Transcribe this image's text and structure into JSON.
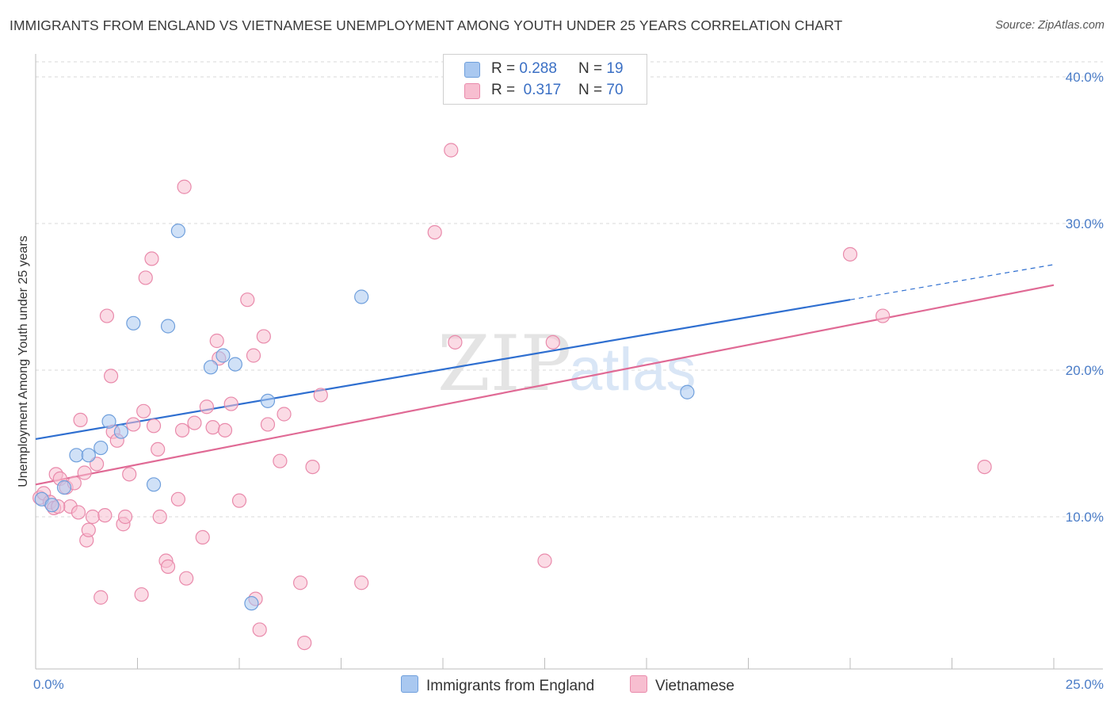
{
  "title": "IMMIGRANTS FROM ENGLAND VS VIETNAMESE UNEMPLOYMENT AMONG YOUTH UNDER 25 YEARS CORRELATION CHART",
  "source": "Source: ZipAtlas.com",
  "watermark": {
    "zip": "ZIP",
    "atlas": "atlas"
  },
  "legend": {
    "england": {
      "r_label": "R =",
      "r_value": "0.288",
      "n_label": "N =",
      "n_value": "19"
    },
    "vietnamese": {
      "r_label": "R =",
      "r_value": "0.317",
      "n_label": "N =",
      "n_value": "70"
    }
  },
  "colors": {
    "england_fill": "#a9c8f0",
    "england_stroke": "#6f9fdc",
    "england_line": "#2f6fd0",
    "vietnamese_fill": "#f7bed0",
    "vietnamese_stroke": "#e98aab",
    "vietnamese_line": "#e06a95",
    "tick": "#4a7cc7",
    "grid": "#d9d9d9"
  },
  "chart_data": {
    "type": "scatter",
    "title": "IMMIGRANTS FROM ENGLAND VS VIETNAMESE UNEMPLOYMENT AMONG YOUTH UNDER 25 YEARS CORRELATION CHART",
    "xlabel": "",
    "ylabel": "Unemployment Among Youth under 25 years",
    "xlim": [
      0,
      25
    ],
    "ylim": [
      0,
      42
    ],
    "x_tick_labels": [
      "0.0%",
      "25.0%"
    ],
    "y_ticks": [
      10,
      20,
      30,
      40
    ],
    "y_tick_labels": [
      "10.0%",
      "20.0%",
      "30.0%",
      "40.0%"
    ],
    "grid": true,
    "legend_position": "top-center",
    "series": [
      {
        "name": "Immigrants from England",
        "points": [
          [
            0.15,
            11.2
          ],
          [
            0.4,
            10.8
          ],
          [
            0.7,
            12.0
          ],
          [
            1.0,
            14.2
          ],
          [
            1.3,
            14.2
          ],
          [
            1.6,
            14.7
          ],
          [
            1.8,
            16.5
          ],
          [
            2.1,
            15.8
          ],
          [
            2.4,
            23.2
          ],
          [
            2.9,
            12.2
          ],
          [
            3.25,
            23.0
          ],
          [
            3.5,
            29.5
          ],
          [
            4.3,
            20.2
          ],
          [
            4.6,
            21.0
          ],
          [
            4.9,
            20.4
          ],
          [
            5.3,
            4.1
          ],
          [
            5.7,
            17.9
          ],
          [
            8.0,
            25.0
          ],
          [
            16.0,
            18.5
          ]
        ],
        "trend": {
          "x": [
            0,
            20,
            25
          ],
          "y": [
            15.3,
            24.8,
            27.2
          ],
          "dashed_from_x": 20
        }
      },
      {
        "name": "Vietnamese",
        "points": [
          [
            0.1,
            11.3
          ],
          [
            0.2,
            11.6
          ],
          [
            0.35,
            11.0
          ],
          [
            0.45,
            10.6
          ],
          [
            0.5,
            12.9
          ],
          [
            0.6,
            12.6
          ],
          [
            0.75,
            12.0
          ],
          [
            0.85,
            10.7
          ],
          [
            0.95,
            12.3
          ],
          [
            1.05,
            10.3
          ],
          [
            1.1,
            16.6
          ],
          [
            1.2,
            13.0
          ],
          [
            1.25,
            8.4
          ],
          [
            1.3,
            9.1
          ],
          [
            1.4,
            10.0
          ],
          [
            1.5,
            13.6
          ],
          [
            1.6,
            4.5
          ],
          [
            1.7,
            10.1
          ],
          [
            1.75,
            23.7
          ],
          [
            1.85,
            19.6
          ],
          [
            1.9,
            15.8
          ],
          [
            2.0,
            15.2
          ],
          [
            2.15,
            9.5
          ],
          [
            2.2,
            10.0
          ],
          [
            2.3,
            12.9
          ],
          [
            2.4,
            16.3
          ],
          [
            2.6,
            4.7
          ],
          [
            2.65,
            17.2
          ],
          [
            2.7,
            26.3
          ],
          [
            2.85,
            27.6
          ],
          [
            2.9,
            16.2
          ],
          [
            3.0,
            14.6
          ],
          [
            3.05,
            10.0
          ],
          [
            3.2,
            7.0
          ],
          [
            3.25,
            6.6
          ],
          [
            3.5,
            11.2
          ],
          [
            3.6,
            15.9
          ],
          [
            3.65,
            32.5
          ],
          [
            3.7,
            5.8
          ],
          [
            3.9,
            16.4
          ],
          [
            4.1,
            8.6
          ],
          [
            4.2,
            17.5
          ],
          [
            4.35,
            16.1
          ],
          [
            4.45,
            22.0
          ],
          [
            4.5,
            20.8
          ],
          [
            4.65,
            15.9
          ],
          [
            4.8,
            17.7
          ],
          [
            5.0,
            11.1
          ],
          [
            5.2,
            24.8
          ],
          [
            5.35,
            21.0
          ],
          [
            5.4,
            4.4
          ],
          [
            5.5,
            2.3
          ],
          [
            5.6,
            22.3
          ],
          [
            5.7,
            16.3
          ],
          [
            6.0,
            13.8
          ],
          [
            6.1,
            17.0
          ],
          [
            6.5,
            5.5
          ],
          [
            6.6,
            1.4
          ],
          [
            6.8,
            13.4
          ],
          [
            7.0,
            18.3
          ],
          [
            8.0,
            5.5
          ],
          [
            9.8,
            29.4
          ],
          [
            10.2,
            35.0
          ],
          [
            10.3,
            21.9
          ],
          [
            12.5,
            7.0
          ],
          [
            12.7,
            21.9
          ],
          [
            20.0,
            27.9
          ],
          [
            20.8,
            23.7
          ],
          [
            23.3,
            13.4
          ],
          [
            0.55,
            10.7
          ]
        ],
        "trend": {
          "x": [
            0,
            25
          ],
          "y": [
            12.2,
            25.8
          ]
        }
      }
    ]
  },
  "bottom_legend": [
    "Immigrants from England",
    "Vietnamese"
  ]
}
